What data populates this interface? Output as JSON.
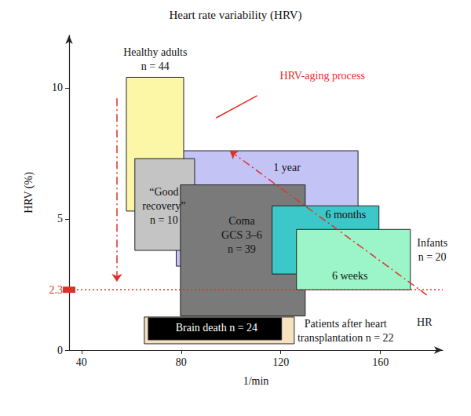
{
  "chart_data": {
    "type": "region",
    "title": "Heart rate variability (HRV)",
    "x_label": "1/min",
    "y_label": "HRV (%)",
    "xlim": [
      35,
      185
    ],
    "ylim": [
      0,
      12
    ],
    "xticks": [
      40,
      80,
      120,
      160
    ],
    "yticks": [
      0,
      2.3,
      5,
      10
    ],
    "grid": false,
    "reference_line": {
      "y": 2.3,
      "color": "#e0302a",
      "line_style": "dotted"
    },
    "regions": [
      {
        "x": [
          78,
          151
        ],
        "y": [
          3.2,
          7.6
        ],
        "color": "#c3c3f5"
      },
      {
        "x": [
          58,
          81
        ],
        "y": [
          5.3,
          10.4
        ],
        "color": "#fcf7a6"
      },
      {
        "x": [
          61.4,
          85.4
        ],
        "y": [
          3.8,
          7.3
        ],
        "color": "#c4c4c4"
      },
      {
        "x": [
          79.7,
          129.8
        ],
        "y": [
          1.3,
          6.3
        ],
        "color": "#7a7a7a"
      },
      {
        "x": [
          116.5,
          159.4
        ],
        "y": [
          2.9,
          5.5
        ],
        "color": "#3cc8c8"
      },
      {
        "x": [
          126.3,
          172
        ],
        "y": [
          2.3,
          4.6
        ],
        "color": "#9cf5c8"
      },
      {
        "x": [
          65.2,
          125.4
        ],
        "y": [
          0.24,
          1.26
        ],
        "color": "#f7e2bf"
      },
      {
        "x": [
          66.8,
          120.3
        ],
        "y": [
          0.39,
          1.23
        ],
        "color": "#000000"
      }
    ],
    "annotations": [
      {
        "text": [
          "Healthy adults",
          "n = 44"
        ],
        "x": 69.6,
        "y": 11.1
      },
      {
        "text": [
          "1 year"
        ],
        "x": 122.5,
        "y": 6.97
      },
      {
        "text": [
          "“Good",
          "recovery”",
          "n = 10"
        ],
        "x": 73.1,
        "y": 5.5
      },
      {
        "text": [
          "Coma",
          "GCS 3–6",
          "n = 39"
        ],
        "x": 104.3,
        "y": 4.37
      },
      {
        "text": [
          "6 months"
        ],
        "x": 146,
        "y": 5.15
      },
      {
        "text": [
          "6 weeks"
        ],
        "x": 147.7,
        "y": 2.84
      },
      {
        "text": [
          "Infants",
          "n = 20"
        ],
        "x": 180.8,
        "y": 3.83
      },
      {
        "text": [
          "Brain death n = 24"
        ],
        "x": 94.2,
        "y": 0.84,
        "color": "#ffffff"
      },
      {
        "text": [
          "Patients after heart",
          "transplantation n = 22"
        ],
        "x": 146,
        "y": 0.72
      },
      {
        "text": [
          "HR"
        ],
        "x": 177.7,
        "y": 1.05
      },
      {
        "text": [
          "HRV-aging process"
        ],
        "x": 136.7,
        "y": 10.45,
        "color": "#e0302a"
      }
    ],
    "arrows": [
      {
        "from": [
          54.2,
          9.6
        ],
        "to": [
          54.2,
          2.6
        ],
        "color": "#e0302a",
        "line_style": "dashdot",
        "marker": "arrow"
      },
      {
        "from": [
          178.6,
          2.1
        ],
        "to": [
          99.5,
          7.6
        ],
        "color": "#e0302a",
        "line_style": "dashdot",
        "marker": "arrow"
      },
      {
        "from": [
          110.5,
          9.7
        ],
        "to": [
          94,
          8.85
        ],
        "color": "#e0302a",
        "line_style": "solid",
        "marker": "none"
      }
    ]
  }
}
